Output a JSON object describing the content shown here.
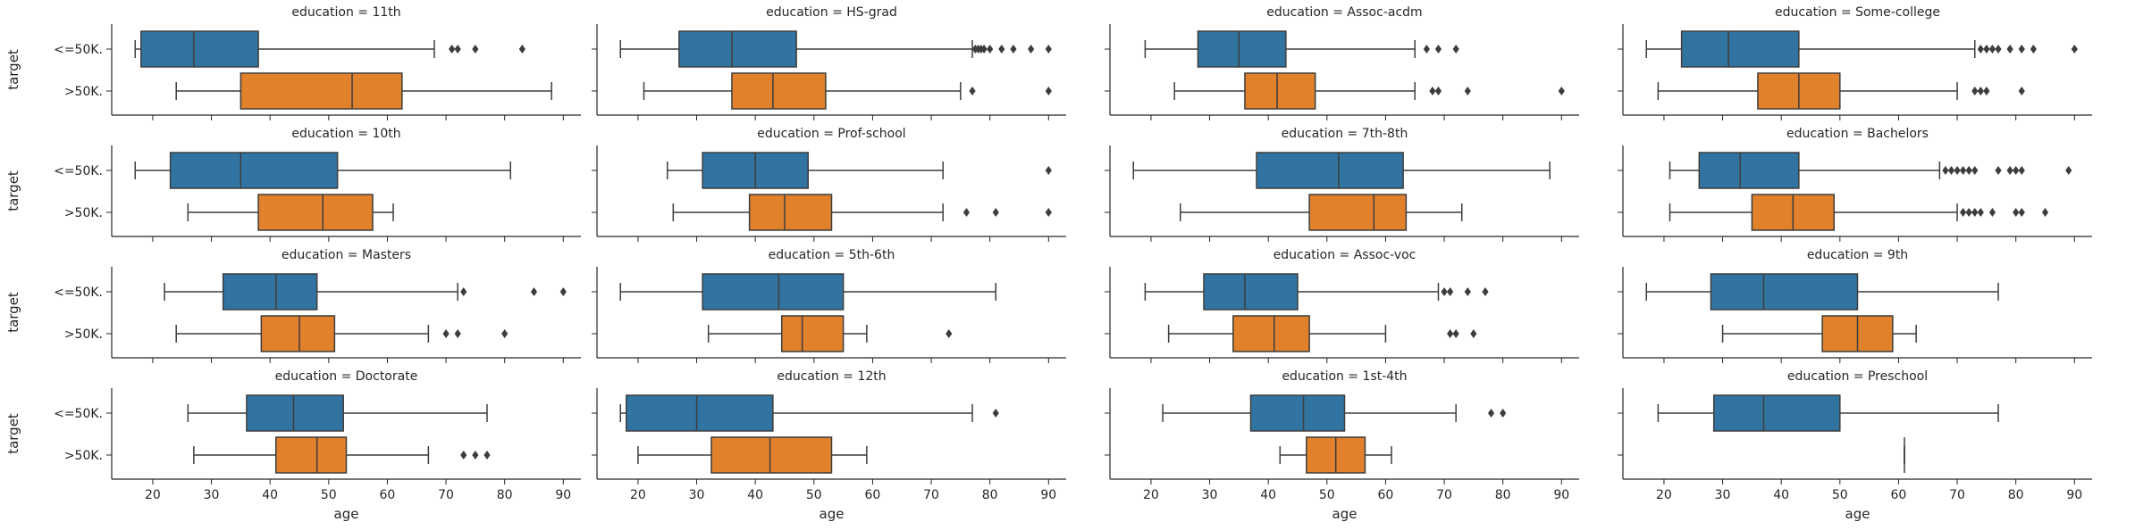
{
  "chart_data": {
    "type": "boxplot",
    "facet_label_prefix": "education = ",
    "xlabel": "age",
    "ylabel": "target",
    "xlim": [
      13,
      93
    ],
    "xticks": [
      20,
      30,
      40,
      50,
      60,
      70,
      80,
      90
    ],
    "categories": [
      "<=50K.",
      ">50K."
    ],
    "colors": {
      "<=50K.": "#3274a1",
      ">50K.": "#e1812c"
    },
    "panels": [
      {
        "facet": "11th",
        "boxes": [
          {
            "target": "<=50K.",
            "whislo": 17,
            "q1": 18,
            "med": 27,
            "q3": 38,
            "whishi": 68,
            "fliers": [
              71,
              72,
              75,
              83
            ]
          },
          {
            "target": ">50K.",
            "whislo": 24,
            "q1": 35,
            "med": 54,
            "q3": 62.5,
            "whishi": 88,
            "fliers": []
          }
        ]
      },
      {
        "facet": "HS-grad",
        "boxes": [
          {
            "target": "<=50K.",
            "whislo": 17,
            "q1": 27,
            "med": 36,
            "q3": 47,
            "whishi": 77,
            "fliers": [
              77.5,
              78,
              78.5,
              79,
              80,
              82,
              84,
              87,
              90
            ]
          },
          {
            "target": ">50K.",
            "whislo": 21,
            "q1": 36,
            "med": 43,
            "q3": 52,
            "whishi": 75,
            "fliers": [
              77,
              90
            ]
          }
        ]
      },
      {
        "facet": "Assoc-acdm",
        "boxes": [
          {
            "target": "<=50K.",
            "whislo": 19,
            "q1": 28,
            "med": 35,
            "q3": 43,
            "whishi": 65,
            "fliers": [
              67,
              69,
              72
            ]
          },
          {
            "target": ">50K.",
            "whislo": 24,
            "q1": 36,
            "med": 41.5,
            "q3": 48,
            "whishi": 65,
            "fliers": [
              68,
              69,
              74,
              90
            ]
          }
        ]
      },
      {
        "facet": "Some-college",
        "boxes": [
          {
            "target": "<=50K.",
            "whislo": 17,
            "q1": 23,
            "med": 31,
            "q3": 43,
            "whishi": 73,
            "fliers": [
              74,
              75,
              76,
              77,
              79,
              81,
              83,
              90
            ]
          },
          {
            "target": ">50K.",
            "whislo": 19,
            "q1": 36,
            "med": 43,
            "q3": 50,
            "whishi": 70,
            "fliers": [
              73,
              74,
              75,
              81
            ]
          }
        ]
      },
      {
        "facet": "10th",
        "boxes": [
          {
            "target": "<=50K.",
            "whislo": 17,
            "q1": 23,
            "med": 35,
            "q3": 51.5,
            "whishi": 81,
            "fliers": []
          },
          {
            "target": ">50K.",
            "whislo": 26,
            "q1": 38,
            "med": 49,
            "q3": 57.5,
            "whishi": 61,
            "fliers": []
          }
        ]
      },
      {
        "facet": "Prof-school",
        "boxes": [
          {
            "target": "<=50K.",
            "whislo": 25,
            "q1": 31,
            "med": 40,
            "q3": 49,
            "whishi": 72,
            "fliers": [
              90
            ]
          },
          {
            "target": ">50K.",
            "whislo": 26,
            "q1": 39,
            "med": 45,
            "q3": 53,
            "whishi": 72,
            "fliers": [
              76,
              81,
              90
            ]
          }
        ]
      },
      {
        "facet": "7th-8th",
        "boxes": [
          {
            "target": "<=50K.",
            "whislo": 17,
            "q1": 38,
            "med": 52,
            "q3": 63,
            "whishi": 88,
            "fliers": []
          },
          {
            "target": ">50K.",
            "whislo": 25,
            "q1": 47,
            "med": 58,
            "q3": 63.5,
            "whishi": 73,
            "fliers": []
          }
        ]
      },
      {
        "facet": "Bachelors",
        "boxes": [
          {
            "target": "<=50K.",
            "whislo": 21,
            "q1": 26,
            "med": 33,
            "q3": 43,
            "whishi": 67,
            "fliers": [
              68,
              69,
              70,
              71,
              72,
              73,
              77,
              79,
              80,
              81,
              89
            ]
          },
          {
            "target": ">50K.",
            "whislo": 21,
            "q1": 35,
            "med": 42,
            "q3": 49,
            "whishi": 70,
            "fliers": [
              71,
              72,
              73,
              74,
              76,
              80,
              81,
              85
            ]
          }
        ]
      },
      {
        "facet": "Masters",
        "boxes": [
          {
            "target": "<=50K.",
            "whislo": 22,
            "q1": 32,
            "med": 41,
            "q3": 48,
            "whishi": 72,
            "fliers": [
              73,
              85,
              90
            ]
          },
          {
            "target": ">50K.",
            "whislo": 24,
            "q1": 38.5,
            "med": 45,
            "q3": 51,
            "whishi": 67,
            "fliers": [
              70,
              72,
              80
            ]
          }
        ]
      },
      {
        "facet": "5th-6th",
        "boxes": [
          {
            "target": "<=50K.",
            "whislo": 17,
            "q1": 31,
            "med": 44,
            "q3": 55,
            "whishi": 81,
            "fliers": []
          },
          {
            "target": ">50K.",
            "whislo": 32,
            "q1": 44.5,
            "med": 48,
            "q3": 55,
            "whishi": 59,
            "fliers": [
              73
            ]
          }
        ]
      },
      {
        "facet": "Assoc-voc",
        "boxes": [
          {
            "target": "<=50K.",
            "whislo": 19,
            "q1": 29,
            "med": 36,
            "q3": 45,
            "whishi": 69,
            "fliers": [
              70,
              71,
              74,
              77
            ]
          },
          {
            "target": ">50K.",
            "whislo": 23,
            "q1": 34,
            "med": 41,
            "q3": 47,
            "whishi": 60,
            "fliers": [
              71,
              72,
              75
            ]
          }
        ]
      },
      {
        "facet": "9th",
        "boxes": [
          {
            "target": "<=50K.",
            "whislo": 17,
            "q1": 28,
            "med": 37,
            "q3": 53,
            "whishi": 77,
            "fliers": []
          },
          {
            "target": ">50K.",
            "whislo": 30,
            "q1": 47,
            "med": 53,
            "q3": 59,
            "whishi": 63,
            "fliers": []
          }
        ]
      },
      {
        "facet": "Doctorate",
        "boxes": [
          {
            "target": "<=50K.",
            "whislo": 26,
            "q1": 36,
            "med": 44,
            "q3": 52.5,
            "whishi": 77,
            "fliers": []
          },
          {
            "target": ">50K.",
            "whislo": 27,
            "q1": 41,
            "med": 48,
            "q3": 53,
            "whishi": 67,
            "fliers": [
              73,
              75,
              77
            ]
          }
        ]
      },
      {
        "facet": "12th",
        "boxes": [
          {
            "target": "<=50K.",
            "whislo": 17,
            "q1": 18,
            "med": 30,
            "q3": 43,
            "whishi": 77,
            "fliers": [
              81
            ]
          },
          {
            "target": ">50K.",
            "whislo": 20,
            "q1": 32.5,
            "med": 42.5,
            "q3": 53,
            "whishi": 59,
            "fliers": []
          }
        ]
      },
      {
        "facet": "1st-4th",
        "boxes": [
          {
            "target": "<=50K.",
            "whislo": 22,
            "q1": 37,
            "med": 46,
            "q3": 53,
            "whishi": 72,
            "fliers": [
              78,
              80
            ]
          },
          {
            "target": ">50K.",
            "whislo": 42,
            "q1": 46.5,
            "med": 51.5,
            "q3": 56.5,
            "whishi": 61,
            "fliers": []
          }
        ]
      },
      {
        "facet": "Preschool",
        "boxes": [
          {
            "target": "<=50K.",
            "whislo": 19,
            "q1": 28.5,
            "med": 37,
            "q3": 50,
            "whishi": 77,
            "fliers": []
          },
          {
            "target": ">50K.",
            "whislo": 61,
            "q1": 61,
            "med": 61,
            "q3": 61,
            "whishi": 61,
            "fliers": []
          }
        ]
      }
    ]
  }
}
